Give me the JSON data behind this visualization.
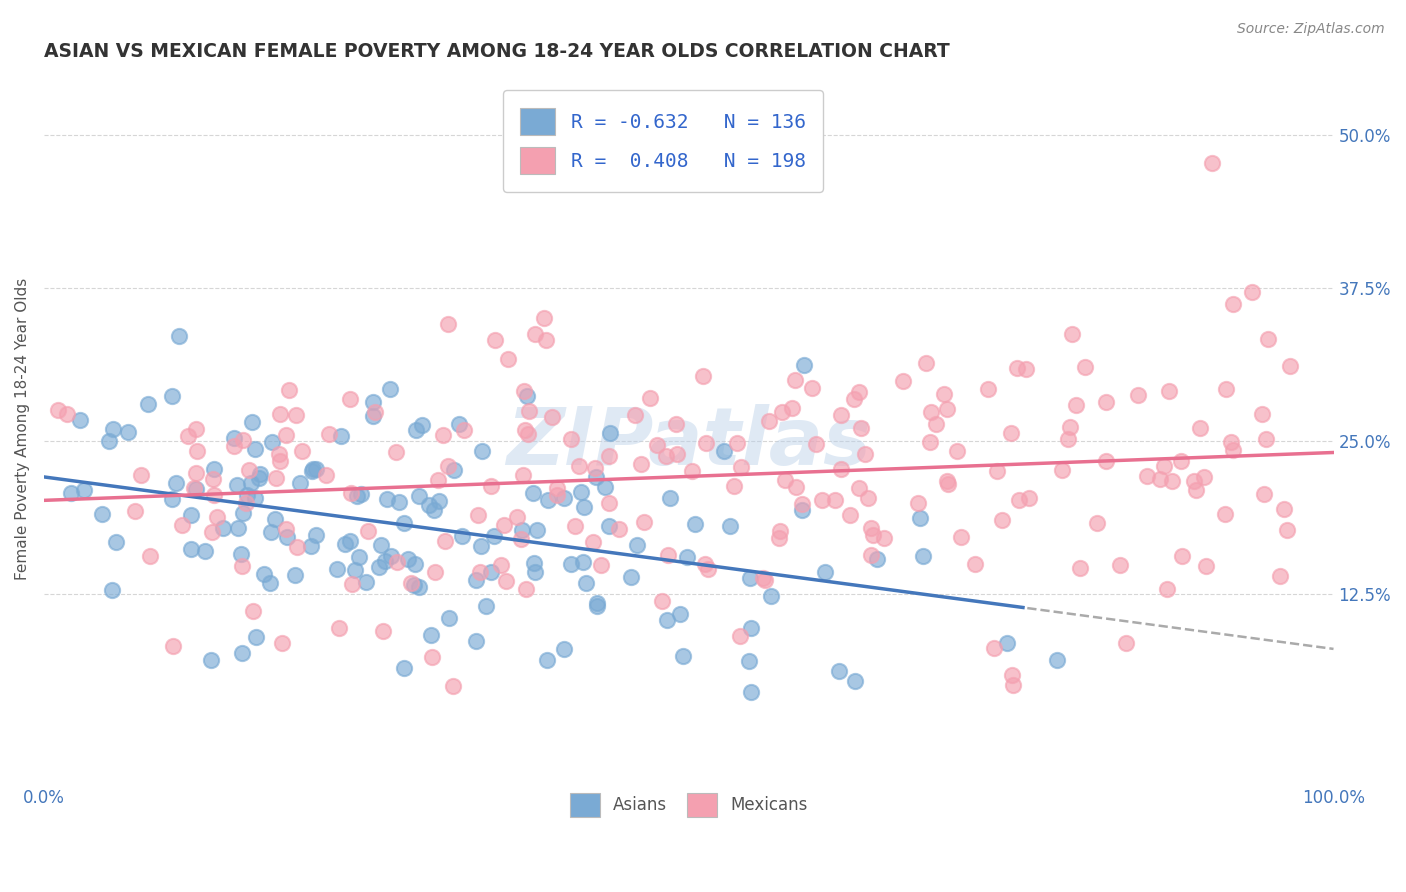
{
  "title": "ASIAN VS MEXICAN FEMALE POVERTY AMONG 18-24 YEAR OLDS CORRELATION CHART",
  "source": "Source: ZipAtlas.com",
  "ylabel": "Female Poverty Among 18-24 Year Olds",
  "xlim": [
    0,
    100
  ],
  "ylim": [
    -3,
    55
  ],
  "yticks": [
    12.5,
    25.0,
    37.5,
    50.0
  ],
  "ytick_labels": [
    "12.5%",
    "25.0%",
    "37.5%",
    "50.0%"
  ],
  "xticks": [
    0,
    100
  ],
  "xtick_labels": [
    "0.0%",
    "100.0%"
  ],
  "watermark": "ZIPatlas",
  "asian_color": "#7aaad4",
  "mexican_color": "#f4a0b0",
  "trend_asian_solid_color": "#4477bb",
  "trend_mexican_color": "#e87090",
  "trend_dash_color": "#aaaaaa",
  "background_color": "#ffffff",
  "grid_color": "#cccccc",
  "title_color": "#333333",
  "axis_label_color": "#555555",
  "ytick_color": "#4477bb",
  "xtick_color": "#4477bb",
  "legend_text_color": "#3366cc",
  "asian_R": -0.632,
  "mexican_R": 0.408,
  "asian_N": 136,
  "mexican_N": 198,
  "asian_seed": 42,
  "mexican_seed": 99,
  "asian_x_max": 75,
  "asian_y_at_0": 22.5,
  "asian_y_at_75": 12.0,
  "mexican_y_at_0": 17.5,
  "mexican_y_at_100": 25.5
}
